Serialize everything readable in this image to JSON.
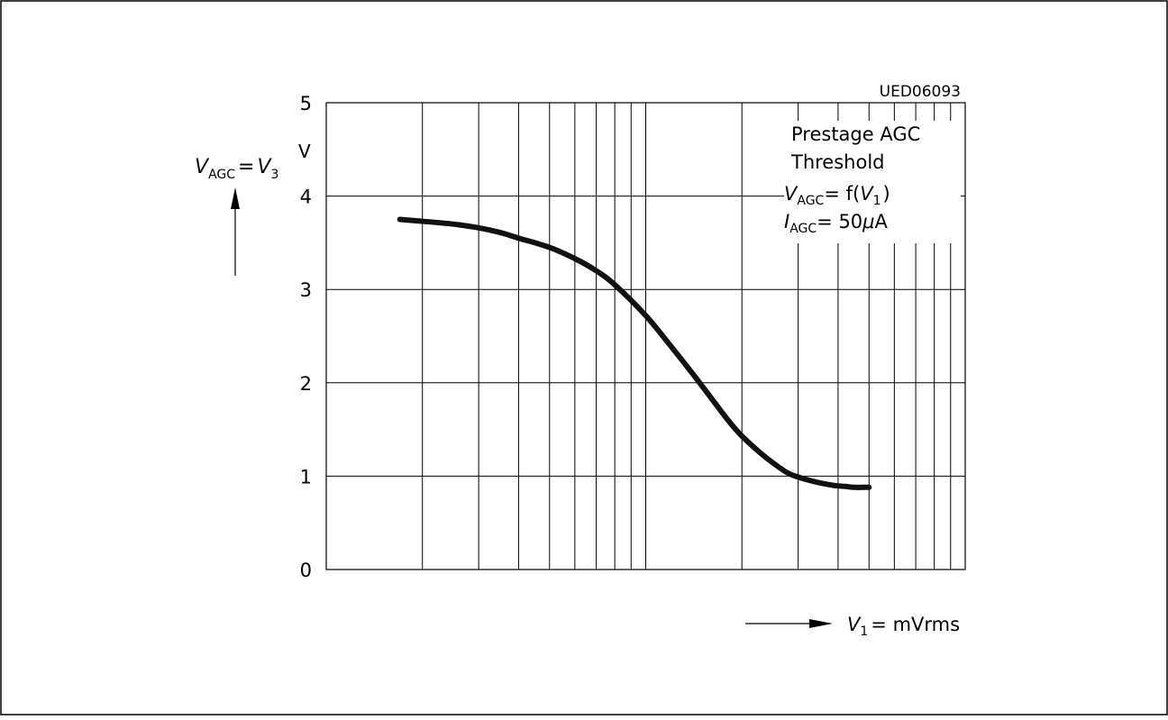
{
  "chart_data": {
    "type": "line",
    "code": "UED06093",
    "title_lines": [
      "Prestage  AGC",
      "Threshold"
    ],
    "formula_1": {
      "var": "V",
      "sub": "AGC",
      "rhs": "= f(",
      "arg_var": "V",
      "arg_sub": "1",
      "close": ")"
    },
    "formula_2": {
      "var": "I",
      "sub": "AGC",
      "rhs": "= 50",
      "mu": "μ",
      "unit": "A"
    },
    "ylabel": {
      "var": "V",
      "sub": "AGC",
      "eq": "=",
      "var2": "V",
      "sub2": "3"
    },
    "yunit": "V",
    "xlabel": {
      "var": "V",
      "sub": "1",
      "rhs": "= mVrms"
    },
    "ylim": [
      0,
      5
    ],
    "yticks": [
      "0",
      "1",
      "2",
      "3",
      "4",
      "5"
    ],
    "x_scale": "log",
    "x_decades": 2,
    "grid": true,
    "series": [
      {
        "x": [
          0.17,
          0.2,
          0.25,
          0.3,
          0.35,
          0.4,
          0.5,
          0.6,
          0.7,
          0.8,
          1.0,
          1.2,
          1.4,
          1.6,
          1.8,
          2.0,
          2.3,
          2.6,
          2.8,
          3.0,
          3.3,
          3.6,
          3.9,
          4.2,
          4.5,
          4.8,
          5.0
        ],
        "y": [
          3.75,
          3.73,
          3.7,
          3.66,
          3.61,
          3.55,
          3.45,
          3.33,
          3.2,
          3.05,
          2.72,
          2.39,
          2.1,
          1.84,
          1.61,
          1.43,
          1.24,
          1.1,
          1.03,
          0.99,
          0.95,
          0.92,
          0.9,
          0.89,
          0.88,
          0.88,
          0.88
        ]
      }
    ]
  }
}
